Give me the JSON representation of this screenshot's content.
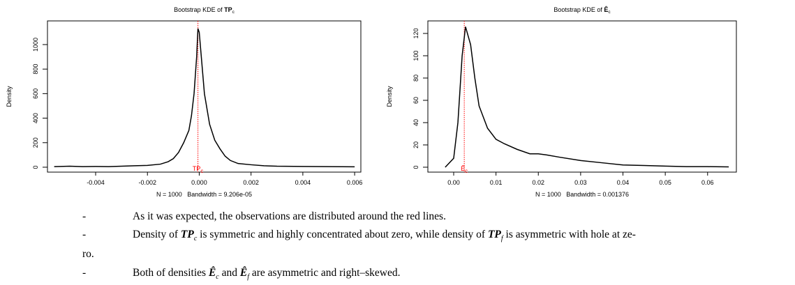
{
  "chart_data": [
    {
      "type": "line",
      "title": [
        "Bootstrap KDE of ",
        "TP",
        "c"
      ],
      "ylabel": "Density",
      "xlabel": "N = 1000   Bandwidth = 9.206e-05",
      "x": [
        -0.0056,
        -0.005,
        -0.0045,
        -0.004,
        -0.0035,
        -0.003,
        -0.0025,
        -0.002,
        -0.0015,
        -0.0012,
        -0.001,
        -0.0008,
        -0.0006,
        -0.0004,
        -0.0003,
        -0.0002,
        -0.0001,
        -5e-05,
        0,
        0.0001,
        0.0002,
        0.0004,
        0.0006,
        0.0008,
        0.001,
        0.0012,
        0.0015,
        0.002,
        0.0025,
        0.003,
        0.004,
        0.005,
        0.006
      ],
      "values": [
        5,
        8,
        5,
        6,
        5,
        8,
        12,
        15,
        25,
        45,
        70,
        120,
        200,
        300,
        420,
        600,
        900,
        1130,
        1100,
        850,
        600,
        350,
        220,
        150,
        90,
        55,
        30,
        20,
        12,
        8,
        6,
        5,
        3
      ],
      "color": "#000000",
      "vline": -5e-05,
      "vline_color": "#ff0000",
      "annotation": [
        "TP",
        "c"
      ],
      "xlim": [
        -0.00586,
        0.00624
      ],
      "xticks": [
        -0.004,
        -0.002,
        {
          "value": 0,
          "label": "0.000"
        },
        0.002,
        0.004,
        0.006
      ],
      "ylim": [
        -40,
        1193
      ],
      "yticks": [
        0,
        200,
        400,
        600,
        800,
        1000
      ]
    },
    {
      "type": "line",
      "title": [
        "Bootstrap KDE of ",
        "Ê",
        "c"
      ],
      "ylabel": "Density",
      "xlabel": "N = 1000   Bandwidth = 0.001376",
      "x": [
        -0.002,
        0,
        0.001,
        0.002,
        0.0028,
        0.004,
        0.005,
        0.006,
        0.008,
        0.01,
        0.012,
        0.015,
        0.018,
        0.02,
        0.022,
        0.025,
        0.03,
        0.035,
        0.04,
        0.045,
        0.05,
        0.055,
        0.06,
        0.065
      ],
      "values": [
        0,
        8,
        40,
        100,
        126,
        110,
        80,
        55,
        35,
        25,
        21,
        16,
        12,
        12,
        11,
        9,
        6,
        4,
        2,
        1.5,
        1,
        0.5,
        0.5,
        0.3
      ],
      "color": "#000000",
      "vline": 0.0025,
      "vline_color": "#ff0000",
      "annotation": [
        "Ê",
        "c"
      ],
      "xlim": [
        -0.0061,
        0.0668
      ],
      "xticks": [
        {
          "value": 0,
          "label": "0.00"
        },
        0.01,
        0.02,
        0.03,
        0.04,
        0.05,
        0.06
      ],
      "ylim": [
        -4.4,
        131.25
      ],
      "yticks": [
        0,
        20,
        40,
        60,
        80,
        100,
        120
      ]
    }
  ],
  "bullets": [
    {
      "marker": "-",
      "runs": [
        "As it was expected, the observations are distributed around the red lines."
      ]
    },
    {
      "marker": "-",
      "runs": [
        "Density of ",
        "TP",
        "c",
        " is symmetric and highly concentrated about zero, while density of ",
        "TP",
        "f",
        " is asymmetric with hole at ze-",
        "ro."
      ]
    },
    {
      "marker": "-",
      "runs": [
        "Both of densities ",
        "Ê",
        "c",
        " and ",
        "Ê",
        "f",
        " are asymmetric and right–skewed."
      ]
    }
  ]
}
